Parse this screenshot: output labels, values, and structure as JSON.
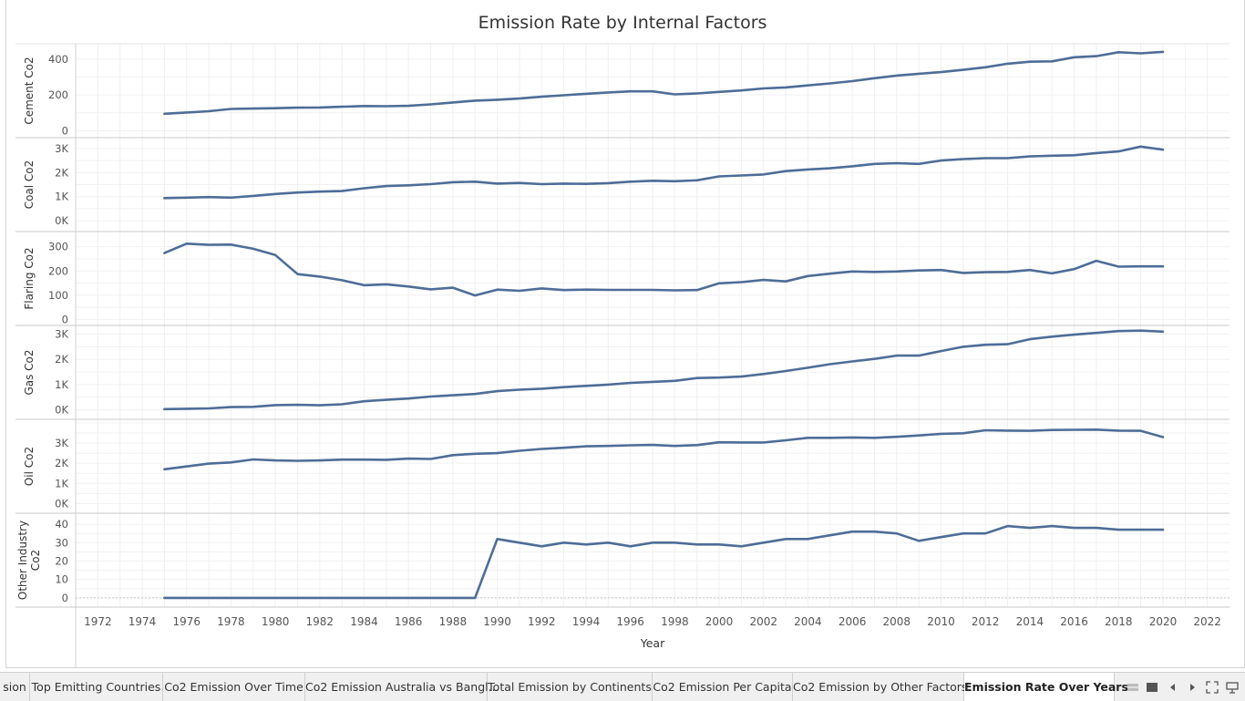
{
  "chart_title": "Emission Rate by Internal Factors",
  "chart_data": {
    "type": "line",
    "title": "Emission Rate by Internal Factors",
    "xlabel": "Year",
    "xlim": [
      1971,
      2023
    ],
    "x_ticks": [
      "1972",
      "1974",
      "1976",
      "1978",
      "1980",
      "1982",
      "1984",
      "1986",
      "1988",
      "1990",
      "1992",
      "1994",
      "1996",
      "1998",
      "2000",
      "2002",
      "2004",
      "2006",
      "2008",
      "2010",
      "2012",
      "2014",
      "2016",
      "2018",
      "2020",
      "2022"
    ],
    "x": [
      1975,
      1976,
      1977,
      1978,
      1979,
      1980,
      1981,
      1982,
      1983,
      1984,
      1985,
      1986,
      1987,
      1988,
      1989,
      1990,
      1991,
      1992,
      1993,
      1994,
      1995,
      1996,
      1997,
      1998,
      1999,
      2000,
      2001,
      2002,
      2003,
      2004,
      2005,
      2006,
      2007,
      2008,
      2009,
      2010,
      2011,
      2012,
      2013,
      2014,
      2015,
      2016,
      2017,
      2018,
      2019,
      2020
    ],
    "line_color": "#4e6d97",
    "grid": true,
    "panels": [
      {
        "ylabel": "Cement Co2",
        "ylim": [
          -18,
          465
        ],
        "ticks": [
          {
            "v": 0,
            "t": "0"
          },
          {
            "v": 200,
            "t": "200"
          },
          {
            "v": 400,
            "t": "400"
          }
        ],
        "values": [
          95,
          102,
          109,
          122,
          124,
          126,
          129,
          130,
          134,
          138,
          137,
          139,
          147,
          158,
          168,
          173,
          180,
          190,
          198,
          206,
          214,
          220,
          220,
          203,
          208,
          217,
          225,
          236,
          242,
          253,
          264,
          277,
          293,
          308,
          318,
          327,
          340,
          354,
          374,
          385,
          387,
          410,
          416,
          438,
          432,
          440
        ]
      },
      {
        "ylabel": "Coal Co2",
        "ylim": [
          -300,
          3300
        ],
        "ticks": [
          {
            "v": 0,
            "t": "0K"
          },
          {
            "v": 1000,
            "t": "1K"
          },
          {
            "v": 2000,
            "t": "2K"
          },
          {
            "v": 3000,
            "t": "3K"
          }
        ],
        "values": [
          940,
          960,
          980,
          960,
          1030,
          1110,
          1170,
          1210,
          1230,
          1350,
          1440,
          1470,
          1520,
          1600,
          1620,
          1540,
          1570,
          1520,
          1540,
          1530,
          1560,
          1620,
          1660,
          1640,
          1680,
          1840,
          1880,
          1920,
          2060,
          2130,
          2180,
          2260,
          2360,
          2390,
          2360,
          2500,
          2560,
          2600,
          2600,
          2670,
          2700,
          2720,
          2810,
          2880,
          3080,
          2950
        ]
      },
      {
        "ylabel": "Flaring Co2",
        "ylim": [
          -10,
          348
        ],
        "ticks": [
          {
            "v": 0,
            "t": "0"
          },
          {
            "v": 100,
            "t": "100"
          },
          {
            "v": 200,
            "t": "200"
          },
          {
            "v": 300,
            "t": "300"
          }
        ],
        "values": [
          274,
          313,
          308,
          309,
          292,
          266,
          187,
          177,
          162,
          141,
          145,
          136,
          124,
          131,
          99,
          123,
          118,
          128,
          121,
          123,
          122,
          122,
          122,
          120,
          121,
          149,
          154,
          163,
          157,
          179,
          189,
          198,
          196,
          198,
          202,
          204,
          192,
          195,
          196,
          204,
          190,
          208,
          242,
          218,
          219,
          219
        ]
      },
      {
        "ylabel": "Gas Co2",
        "ylim": [
          -230,
          3200
        ],
        "ticks": [
          {
            "v": 0,
            "t": "0K"
          },
          {
            "v": 1000,
            "t": "1K"
          },
          {
            "v": 2000,
            "t": "2K"
          },
          {
            "v": 3000,
            "t": "3K"
          }
        ],
        "values": [
          30,
          45,
          60,
          110,
          120,
          190,
          200,
          180,
          220,
          340,
          400,
          450,
          530,
          580,
          630,
          740,
          800,
          840,
          900,
          950,
          1000,
          1070,
          1110,
          1150,
          1260,
          1280,
          1320,
          1420,
          1540,
          1670,
          1810,
          1920,
          2020,
          2150,
          2150,
          2330,
          2500,
          2580,
          2600,
          2800,
          2900,
          2980,
          3050,
          3120,
          3140,
          3100
        ]
      },
      {
        "ylabel": "Oil Co2",
        "ylim": [
          -300,
          4000
        ],
        "ticks": [
          {
            "v": 0,
            "t": "0K"
          },
          {
            "v": 1000,
            "t": "1K"
          },
          {
            "v": 2000,
            "t": "2K"
          },
          {
            "v": 3000,
            "t": "3K"
          }
        ],
        "values": [
          1700,
          1840,
          1980,
          2040,
          2190,
          2140,
          2120,
          2140,
          2180,
          2180,
          2170,
          2230,
          2210,
          2400,
          2470,
          2500,
          2620,
          2710,
          2770,
          2840,
          2860,
          2890,
          2910,
          2860,
          2900,
          3040,
          3030,
          3030,
          3140,
          3260,
          3260,
          3280,
          3260,
          3310,
          3380,
          3460,
          3490,
          3640,
          3620,
          3610,
          3650,
          3660,
          3670,
          3620,
          3610,
          3300
        ]
      },
      {
        "ylabel": "Other Industry Co2",
        "ylim": [
          -3,
          44
        ],
        "ticks": [
          {
            "v": 0,
            "t": "0"
          },
          {
            "v": 10,
            "t": "10"
          },
          {
            "v": 20,
            "t": "20"
          },
          {
            "v": 30,
            "t": "30"
          },
          {
            "v": 40,
            "t": "40"
          }
        ],
        "values": [
          0,
          0,
          0,
          0,
          0,
          0,
          0,
          0,
          0,
          0,
          0,
          0,
          0,
          0,
          0,
          32,
          30,
          28,
          30,
          29,
          30,
          28,
          30,
          30,
          29,
          29,
          28,
          30,
          32,
          32,
          34,
          36,
          36,
          35,
          31,
          33,
          35,
          35,
          39,
          38,
          39,
          38,
          38,
          37,
          37,
          37
        ]
      }
    ]
  },
  "tabs": [
    {
      "label": "sion"
    },
    {
      "label": "Top Emitting Countries"
    },
    {
      "label": "Co2 Emission Over Time"
    },
    {
      "label": "Co2 Emission Australia vs Bangl..."
    },
    {
      "label": "Total Emission by Continents"
    },
    {
      "label": "Co2 Emission Per Capita"
    },
    {
      "label": "Co2 Emission by Other Factors"
    },
    {
      "label": "Emission Rate Over Years",
      "active": true
    }
  ],
  "controls": {
    "grid_icon": "grid-view-icon",
    "sheet_icon": "sheet-view-icon",
    "prev_icon": "previous-arrow-icon",
    "next_icon": "next-arrow-icon",
    "fullscreen_icon": "fullscreen-icon",
    "present_icon": "presentation-icon"
  }
}
